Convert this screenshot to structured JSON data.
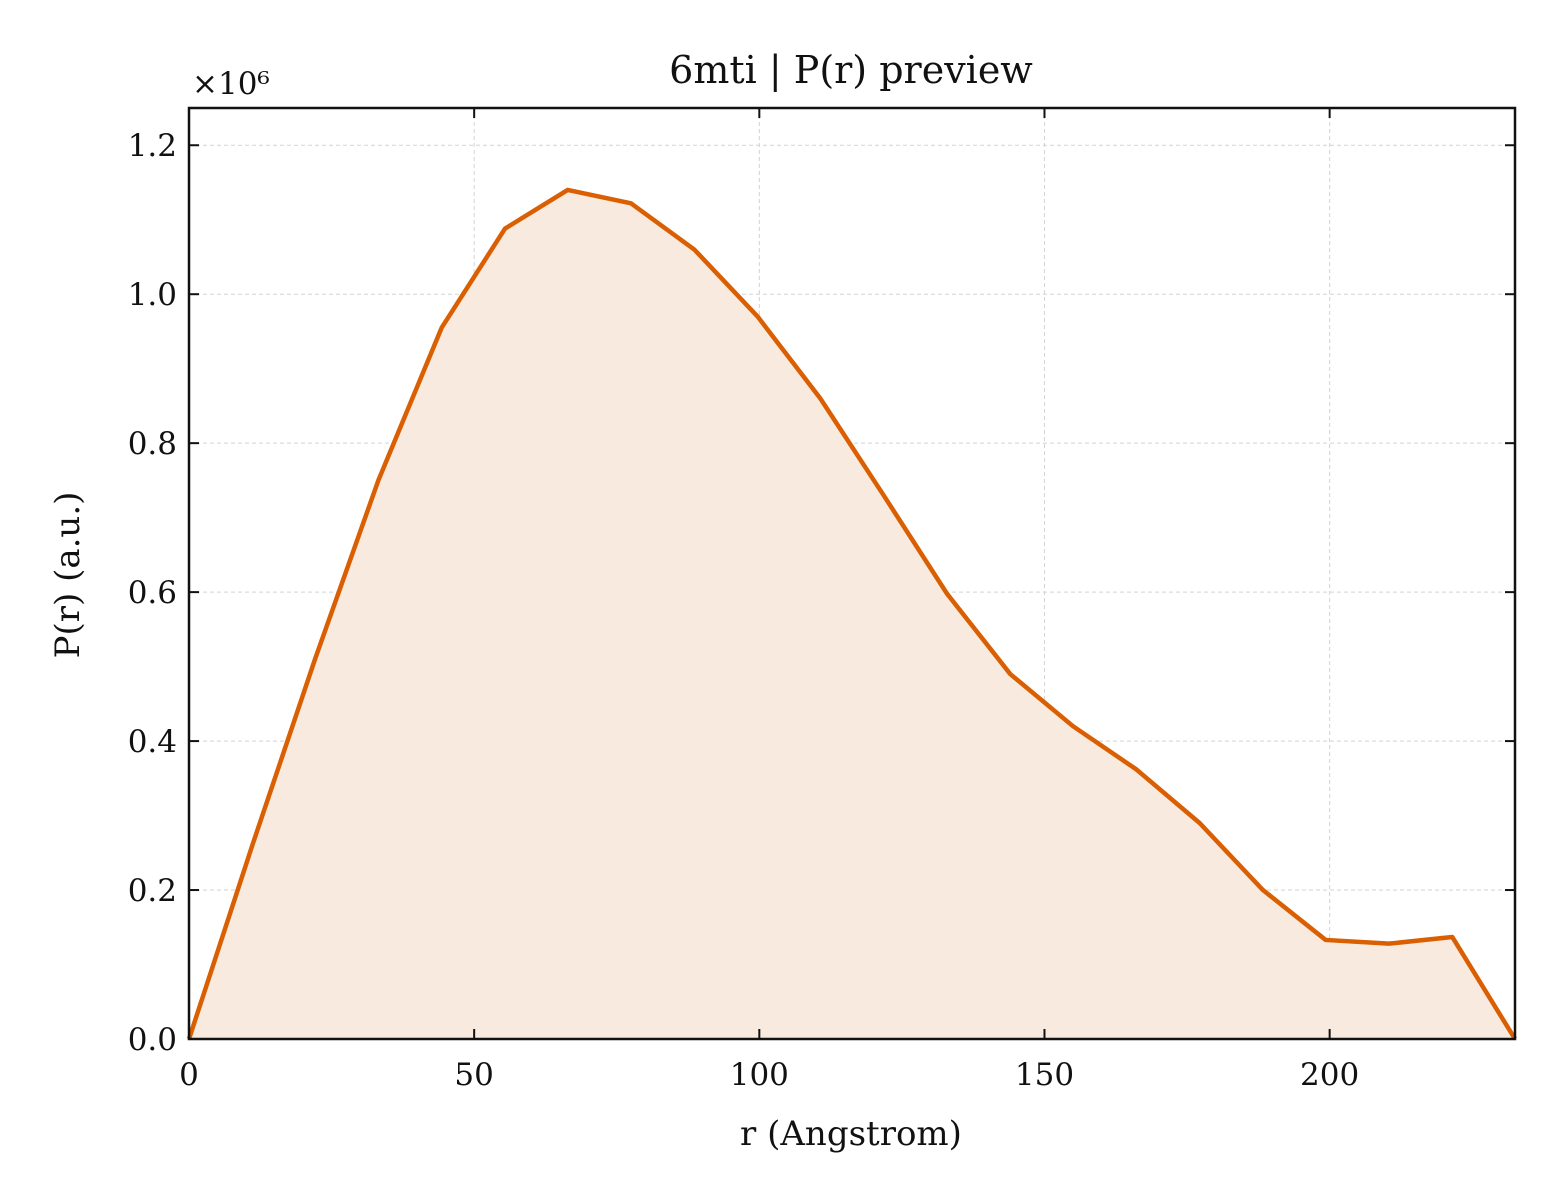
{
  "chart_data": {
    "type": "area",
    "title": "6mti | P(r) preview",
    "xlabel": "r (Angstrom)",
    "ylabel": "P(r) (a.u.)",
    "y_offset_label": "×10⁶",
    "xlim": [
      0,
      232.5
    ],
    "ylim": [
      0,
      1.25
    ],
    "xticks": [
      0,
      50,
      100,
      150,
      200
    ],
    "xtick_labels": [
      "0",
      "50",
      "100",
      "150",
      "200"
    ],
    "yticks": [
      0.0,
      0.2,
      0.4,
      0.6,
      0.8,
      1.0,
      1.2
    ],
    "ytick_labels": [
      "0.0",
      "0.2",
      "0.4",
      "0.6",
      "0.8",
      "1.0",
      "1.2"
    ],
    "grid": true,
    "line_color": "#d95f02",
    "fill_color": "#f9eadf",
    "series": [
      {
        "x": [
          0,
          11.1,
          22.1,
          33.2,
          44.3,
          55.4,
          66.4,
          77.5,
          88.6,
          99.7,
          110.7,
          121.8,
          132.9,
          144.0,
          155.0,
          166.1,
          177.2,
          188.3,
          199.3,
          210.4,
          221.5,
          232.5
        ],
        "values": [
          0.0,
          0.26,
          0.51,
          0.75,
          0.955,
          1.088,
          1.14,
          1.122,
          1.06,
          0.97,
          0.86,
          0.73,
          0.598,
          0.49,
          0.42,
          0.362,
          0.29,
          0.2,
          0.133,
          0.128,
          0.137,
          0.0
        ]
      }
    ]
  }
}
